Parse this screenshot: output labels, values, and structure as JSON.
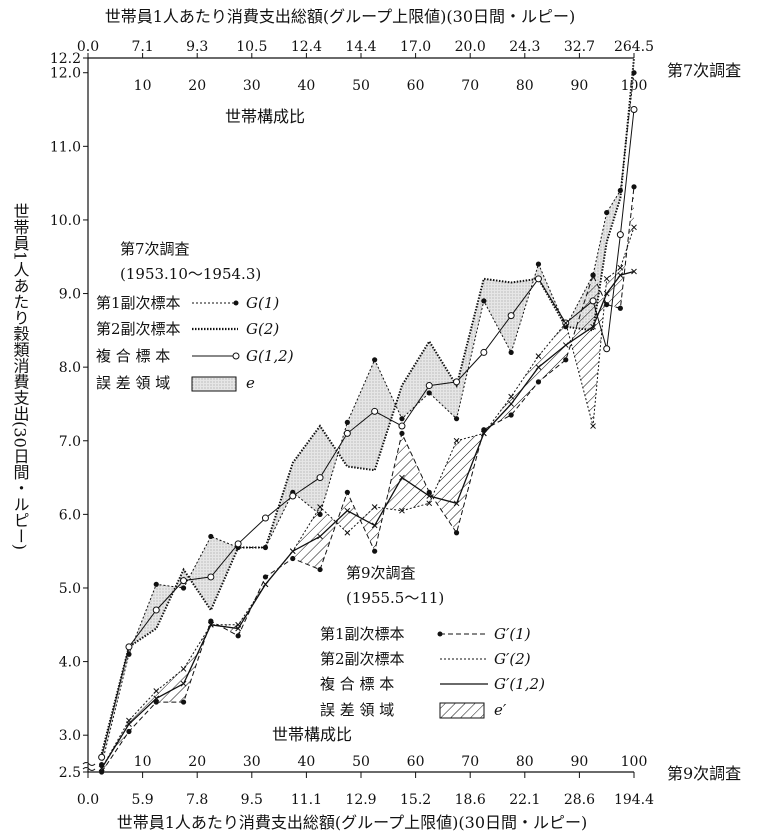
{
  "chart_data": {
    "type": "line",
    "title_top": "世帯員1人あたり消費支出総額(グループ上限値)(30日間・ルピー)",
    "title_bottom": "世帯員1人あたり消費支出総額(グループ上限値)(30日間・ルピー)",
    "ylabel": "世帯員1人あたり穀類消費支出(30日間・ルピー)",
    "ylim": [
      2.5,
      12.2
    ],
    "y_ticks": [
      "2.5",
      "3.0",
      "4.0",
      "5.0",
      "6.0",
      "7.0",
      "8.0",
      "9.0",
      "10.0",
      "11.0",
      "12.0",
      "12.2"
    ],
    "x_composition_ticks": [
      "10",
      "20",
      "30",
      "40",
      "50",
      "60",
      "70",
      "80",
      "90",
      "100"
    ],
    "composition_label_top": "世帯構成比",
    "composition_label_bottom": "世帯構成比",
    "top_expenditure_ticks": [
      "0.0",
      "7.1",
      "9.3",
      "10.5",
      "12.4",
      "14.4",
      "17.0",
      "20.0",
      "24.3",
      "32.7",
      "264.5"
    ],
    "bottom_expenditure_ticks": [
      "0.0",
      "5.9",
      "7.8",
      "9.5",
      "11.1",
      "12.9",
      "15.2",
      "18.6",
      "22.1",
      "28.6",
      "194.4"
    ],
    "survey7_right_label": "第7次調査",
    "survey9_right_label": "第9次調査",
    "legend7": {
      "title": "第7次調査",
      "period": "(1953.10〜1954.3)",
      "items": [
        {
          "label": "第1副次標本",
          "symbol": "G(1)"
        },
        {
          "label": "第2副次標本",
          "symbol": "G(2)"
        },
        {
          "label": "複 合 標 本",
          "symbol": "G(1,2)"
        },
        {
          "label": "誤 差 領 域",
          "symbol": "e"
        }
      ]
    },
    "legend9": {
      "title": "第9次調査",
      "period": "(1955.5〜11)",
      "items": [
        {
          "label": "第1副次標本",
          "symbol": "G′(1)"
        },
        {
          "label": "第2副次標本",
          "symbol": "G′(2)"
        },
        {
          "label": "複 合 標 本",
          "symbol": "G′(1,2)"
        },
        {
          "label": "誤 差 領 域",
          "symbol": "e′"
        }
      ]
    },
    "x": [
      2.5,
      7.5,
      12.5,
      17.5,
      22.5,
      27.5,
      32.5,
      37.5,
      42.5,
      47.5,
      52.5,
      57.5,
      62.5,
      67.5,
      72.5,
      77.5,
      82.5,
      87.5,
      92.5,
      95.0,
      97.5,
      100.0
    ],
    "series": [
      {
        "symbol": "G(1)",
        "values": [
          2.6,
          4.1,
          5.05,
          5.0,
          5.7,
          5.55,
          5.55,
          6.3,
          6.0,
          7.25,
          8.1,
          7.3,
          7.65,
          7.3,
          8.9,
          8.2,
          9.4,
          8.55,
          9.25,
          10.1,
          10.4,
          12.0
        ]
      },
      {
        "symbol": "G(2)",
        "values": [
          2.75,
          4.2,
          4.45,
          5.25,
          4.7,
          5.55,
          5.55,
          6.7,
          7.2,
          6.65,
          6.6,
          7.75,
          8.35,
          7.75,
          9.2,
          9.15,
          9.2,
          8.55,
          8.5,
          9.7,
          10.3,
          12.2
        ]
      },
      {
        "symbol": "G(1,2)",
        "values": [
          2.7,
          4.2,
          4.7,
          5.1,
          5.15,
          5.6,
          5.95,
          6.25,
          6.5,
          7.1,
          7.4,
          7.2,
          7.75,
          7.8,
          8.2,
          8.7,
          9.2,
          8.6,
          8.9,
          8.25,
          9.8,
          11.5
        ]
      },
      {
        "symbol": "G′(1)",
        "values": [
          2.5,
          3.05,
          3.45,
          3.45,
          4.55,
          4.35,
          5.15,
          5.4,
          5.25,
          6.3,
          5.5,
          7.1,
          6.3,
          5.75,
          7.15,
          7.35,
          7.8,
          8.1,
          9.25,
          8.85,
          8.8,
          10.45
        ]
      },
      {
        "symbol": "G′(2)",
        "values": [
          2.55,
          3.2,
          3.6,
          3.9,
          4.5,
          4.5,
          5.05,
          5.5,
          6.1,
          5.75,
          6.1,
          6.05,
          6.15,
          7.0,
          7.1,
          7.6,
          8.15,
          8.6,
          7.2,
          9.2,
          9.35,
          9.9
        ]
      },
      {
        "symbol": "G′(1,2)",
        "values": [
          2.55,
          3.15,
          3.5,
          3.7,
          4.5,
          4.45,
          5.05,
          5.5,
          5.7,
          6.05,
          5.85,
          6.5,
          6.25,
          6.15,
          7.1,
          7.5,
          8.0,
          8.3,
          8.55,
          9.0,
          9.25,
          9.3
        ]
      }
    ]
  }
}
